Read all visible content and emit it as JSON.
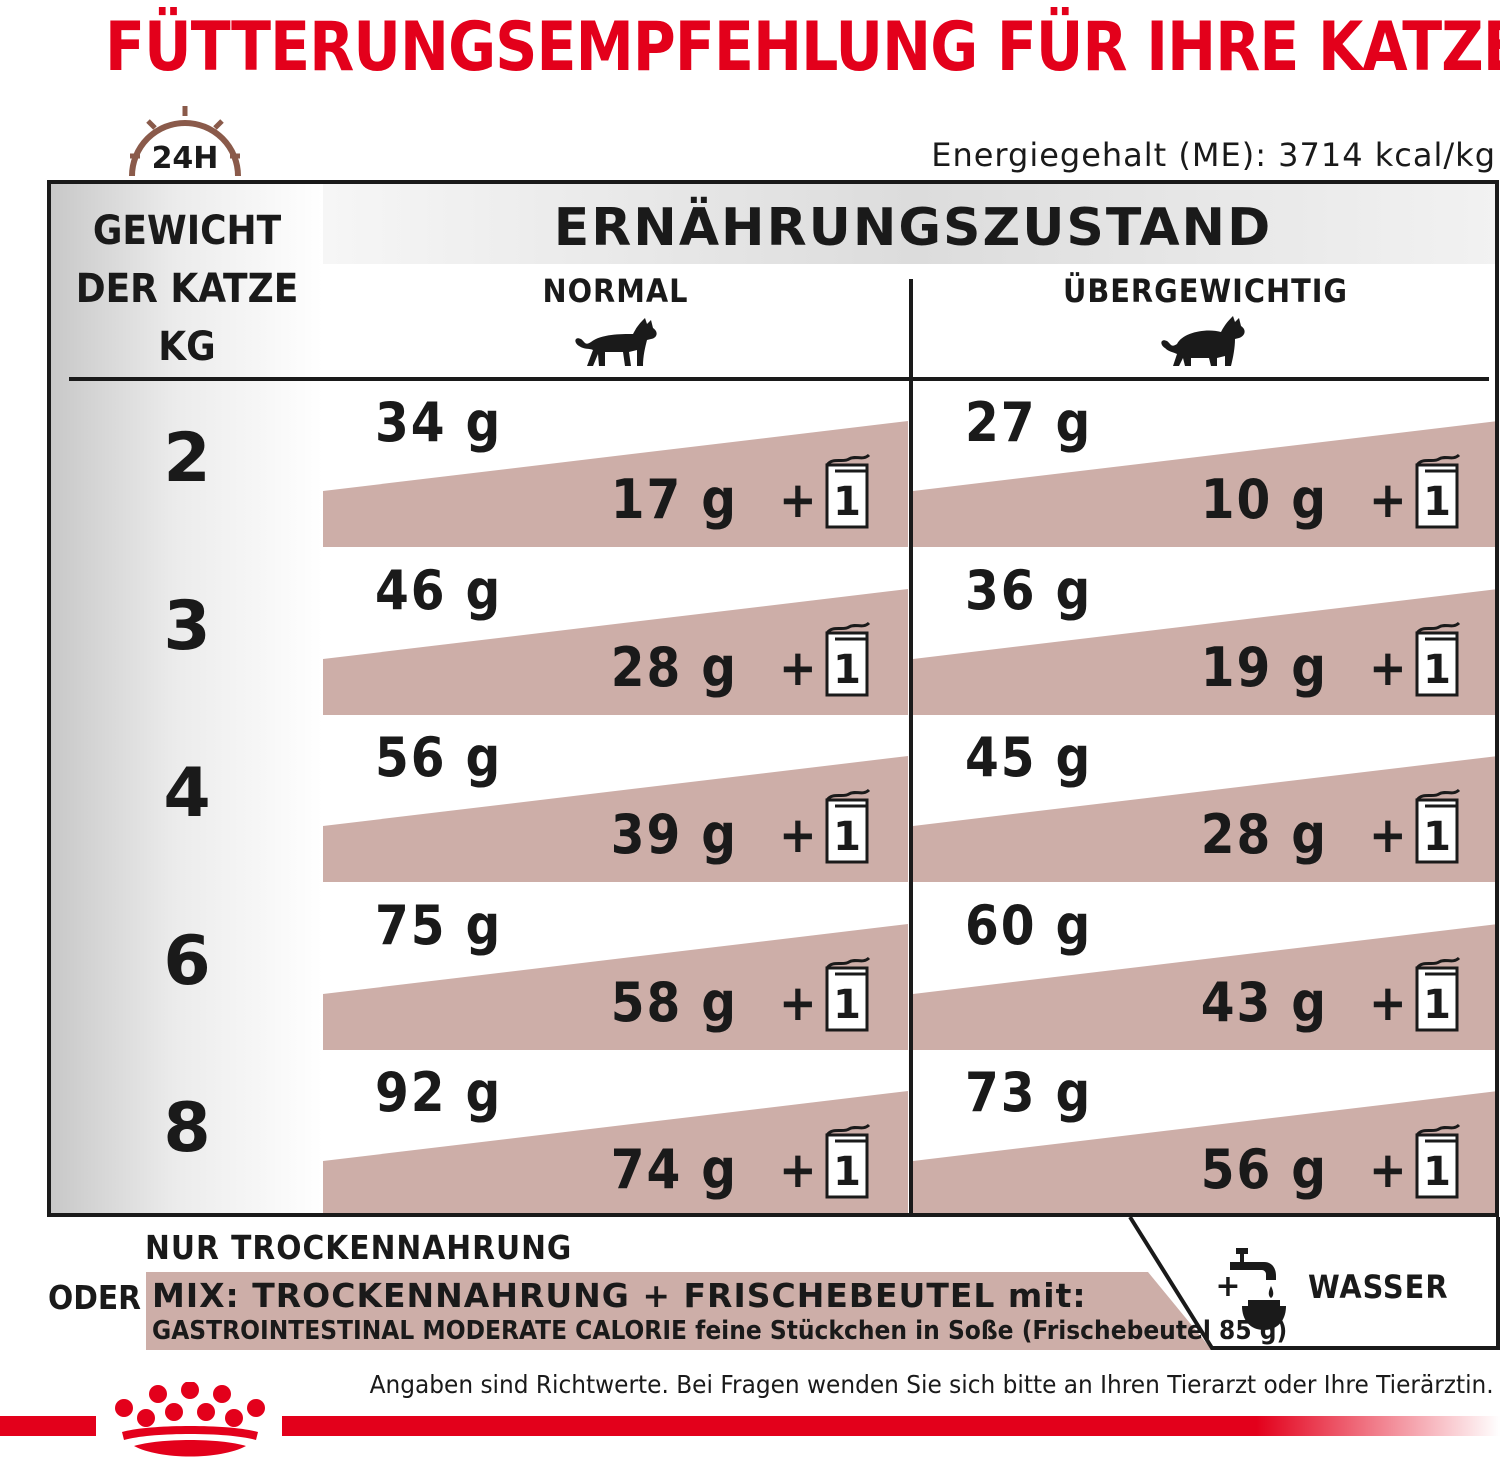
{
  "title": "FÜTTERUNGSEMPFEHLUNG FÜR IHRE KATZE",
  "clock_label": "24H",
  "energy": "Energiegehalt (ME): 3714 kcal/kg",
  "table": {
    "weight_header": [
      "GEWICHT",
      "DER KATZE",
      "KG"
    ],
    "state_title": "ERNÄHRUNGSZUSTAND",
    "columns": [
      "NORMAL",
      "ÜBERGEWICHTIG"
    ],
    "pouch_count": "1",
    "plus": "+",
    "rows": [
      {
        "weight": "2",
        "normal": {
          "dry": "34 g",
          "mix": "17 g"
        },
        "overweight": {
          "dry": "27 g",
          "mix": "10 g"
        }
      },
      {
        "weight": "3",
        "normal": {
          "dry": "46 g",
          "mix": "28 g"
        },
        "overweight": {
          "dry": "36 g",
          "mix": "19 g"
        }
      },
      {
        "weight": "4",
        "normal": {
          "dry": "56 g",
          "mix": "39 g"
        },
        "overweight": {
          "dry": "45 g",
          "mix": "28 g"
        }
      },
      {
        "weight": "6",
        "normal": {
          "dry": "75 g",
          "mix": "58 g"
        },
        "overweight": {
          "dry": "60 g",
          "mix": "43 g"
        }
      },
      {
        "weight": "8",
        "normal": {
          "dry": "92 g",
          "mix": "74 g"
        },
        "overweight": {
          "dry": "73 g",
          "mix": "56 g"
        }
      }
    ]
  },
  "legend": {
    "dry_only": "NUR TROCKENNAHRUNG",
    "or": "ODER",
    "mix_line1": "MIX: TROCKENNAHRUNG + FRISCHEBEUTEL mit:",
    "mix_line2": "GASTROINTESTINAL MODERATE CALORIE feine Stückchen in Soße (Frischebeutel 85 g)",
    "water_plus": "+",
    "water": "WASSER"
  },
  "footnote": "Angaben sind Richtwerte. Bei Fragen wenden Sie sich bitte an Ihren Tierarzt oder Ihre Tierärztin.",
  "colors": {
    "brand_red": "#e3001b",
    "mix_band": "#cdaea8",
    "clock_brown": "#8a5a4a",
    "text": "#1a1a1a"
  },
  "icons": [
    "clock-icon",
    "cat-normal-icon",
    "cat-overweight-icon",
    "pouch-icon",
    "water-tap-bowl-icon",
    "crown-logo"
  ]
}
